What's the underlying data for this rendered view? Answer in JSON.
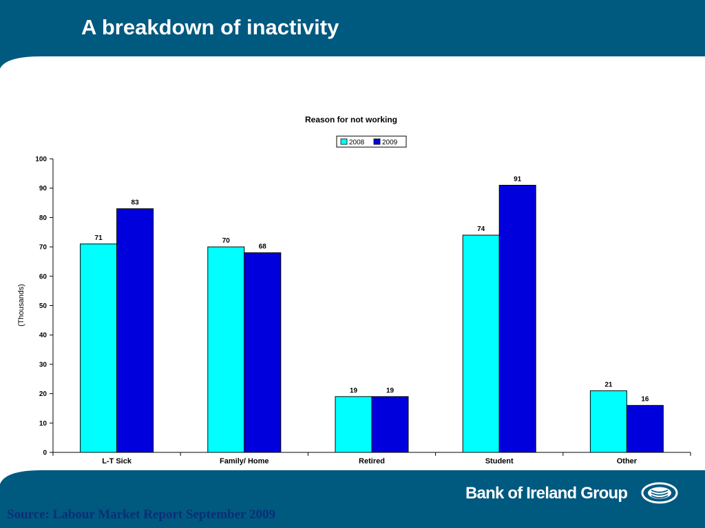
{
  "slide": {
    "title": "A breakdown of inactivity",
    "source": "Source: Labour Market Report September 2009",
    "brand": "Bank of Ireland Group",
    "colors": {
      "band": "#00597f",
      "series_2008": "#00ffff",
      "series_2009": "#0000dd",
      "source_text": "#0b2e78"
    }
  },
  "chart_data": {
    "type": "bar",
    "title": "Reason for not working",
    "ylabel": "(Thousands)",
    "xlabel": "",
    "categories": [
      "L-T Sick",
      "Family/ Home",
      "Retired",
      "Student",
      "Other"
    ],
    "series": [
      {
        "name": "2008",
        "values": [
          71,
          70,
          19,
          74,
          21
        ]
      },
      {
        "name": "2009",
        "values": [
          83,
          68,
          19,
          91,
          16
        ]
      }
    ],
    "ylim": [
      0,
      100
    ],
    "yticks": [
      0,
      10,
      20,
      30,
      40,
      50,
      60,
      70,
      80,
      90,
      100
    ],
    "grid": false,
    "legend": "top-center",
    "data_labels": true
  }
}
